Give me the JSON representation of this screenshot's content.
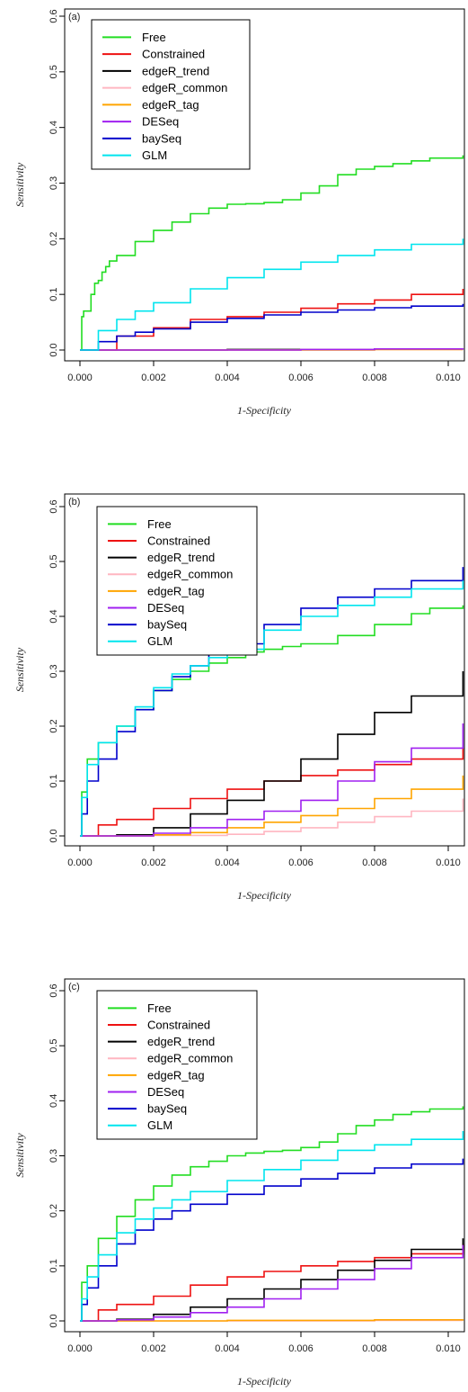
{
  "figure": {
    "legend_labels": [
      "Free",
      "Constrained",
      "edgeR_trend",
      "edgeR_common",
      "edgeR_tag",
      "DESeq",
      "baySeq",
      "GLM"
    ]
  },
  "chart_data": [
    {
      "type": "line",
      "panel": "(a)",
      "xlabel": "1-Specificity",
      "ylabel": "Sensitivity",
      "xlim": [
        0,
        0.0104
      ],
      "ylim": [
        0,
        0.6
      ],
      "xticks": [
        "0.000",
        "0.002",
        "0.004",
        "0.006",
        "0.008",
        "0.010"
      ],
      "yticks": [
        "0.0",
        "0.1",
        "0.2",
        "0.3",
        "0.4",
        "0.5",
        "0.6"
      ],
      "legend_position": "top-left",
      "series": [
        {
          "name": "Free",
          "color": "#22dd22",
          "x": [
            0,
            5e-05,
            0.0001,
            0.0003,
            0.0004,
            0.0005,
            0.0006,
            0.0007,
            0.0008,
            0.001,
            0.0015,
            0.002,
            0.0025,
            0.003,
            0.0035,
            0.004,
            0.0045,
            0.005,
            0.0055,
            0.006,
            0.0065,
            0.007,
            0.0075,
            0.008,
            0.0085,
            0.009,
            0.0095,
            0.0104
          ],
          "y": [
            0,
            0.06,
            0.07,
            0.1,
            0.12,
            0.125,
            0.14,
            0.15,
            0.16,
            0.17,
            0.195,
            0.215,
            0.23,
            0.245,
            0.255,
            0.262,
            0.263,
            0.265,
            0.27,
            0.282,
            0.295,
            0.315,
            0.325,
            0.33,
            0.335,
            0.34,
            0.345,
            0.35
          ]
        },
        {
          "name": "Constrained",
          "color": "#ee1111",
          "x": [
            0,
            0.001,
            0.002,
            0.003,
            0.004,
            0.005,
            0.006,
            0.007,
            0.008,
            0.009,
            0.0104
          ],
          "y": [
            0,
            0.025,
            0.04,
            0.055,
            0.06,
            0.068,
            0.075,
            0.083,
            0.09,
            0.1,
            0.11
          ]
        },
        {
          "name": "edgeR_trend",
          "color": "#000000",
          "x": [
            0,
            0.002,
            0.004,
            0.006,
            0.008,
            0.0104
          ],
          "y": [
            0,
            0,
            0.001,
            0.001,
            0.002,
            0.002
          ]
        },
        {
          "name": "edgeR_common",
          "color": "#ffb6c1",
          "x": [
            0,
            0.002,
            0.004,
            0.006,
            0.008,
            0.0104
          ],
          "y": [
            0,
            0,
            0,
            0.001,
            0.001,
            0.001
          ]
        },
        {
          "name": "edgeR_tag",
          "color": "#ffa500",
          "x": [
            0,
            0.002,
            0.004,
            0.006,
            0.008,
            0.0104
          ],
          "y": [
            0,
            0,
            0,
            0,
            0.001,
            0.001
          ]
        },
        {
          "name": "DESeq",
          "color": "#a020f0",
          "x": [
            0,
            0.002,
            0.004,
            0.006,
            0.008,
            0.0104
          ],
          "y": [
            0,
            0,
            0,
            0.001,
            0.002,
            0.003
          ]
        },
        {
          "name": "baySeq",
          "color": "#0000cc",
          "x": [
            0,
            0.0005,
            0.001,
            0.0015,
            0.002,
            0.003,
            0.004,
            0.005,
            0.006,
            0.007,
            0.008,
            0.009,
            0.0104
          ],
          "y": [
            0,
            0.015,
            0.025,
            0.032,
            0.038,
            0.05,
            0.057,
            0.063,
            0.068,
            0.072,
            0.076,
            0.079,
            0.083
          ]
        },
        {
          "name": "GLM",
          "color": "#00e5ee",
          "x": [
            0,
            0.0005,
            0.001,
            0.0015,
            0.002,
            0.003,
            0.004,
            0.005,
            0.006,
            0.007,
            0.008,
            0.009,
            0.0104
          ],
          "y": [
            0,
            0.035,
            0.055,
            0.07,
            0.085,
            0.11,
            0.13,
            0.145,
            0.158,
            0.17,
            0.18,
            0.19,
            0.2
          ]
        }
      ]
    },
    {
      "type": "line",
      "panel": "(b)",
      "xlabel": "1-Specificity",
      "ylabel": "Sensitivity",
      "xlim": [
        0,
        0.0104
      ],
      "ylim": [
        0,
        0.6
      ],
      "xticks": [
        "0.000",
        "0.002",
        "0.004",
        "0.006",
        "0.008",
        "0.010"
      ],
      "yticks": [
        "0.0",
        "0.1",
        "0.2",
        "0.3",
        "0.4",
        "0.5",
        "0.6"
      ],
      "legend_position": "top-left",
      "series": [
        {
          "name": "Free",
          "color": "#22dd22",
          "x": [
            0,
            5e-05,
            0.0002,
            0.0005,
            0.001,
            0.0015,
            0.002,
            0.0025,
            0.003,
            0.0035,
            0.004,
            0.0045,
            0.005,
            0.0055,
            0.006,
            0.007,
            0.008,
            0.009,
            0.0095,
            0.0104
          ],
          "y": [
            0,
            0.08,
            0.14,
            0.17,
            0.2,
            0.23,
            0.265,
            0.285,
            0.3,
            0.315,
            0.325,
            0.335,
            0.34,
            0.345,
            0.35,
            0.365,
            0.385,
            0.405,
            0.415,
            0.42
          ]
        },
        {
          "name": "Constrained",
          "color": "#ee1111",
          "x": [
            0,
            0.0005,
            0.001,
            0.002,
            0.003,
            0.004,
            0.005,
            0.006,
            0.007,
            0.008,
            0.009,
            0.0104
          ],
          "y": [
            0,
            0.02,
            0.03,
            0.05,
            0.068,
            0.085,
            0.1,
            0.11,
            0.12,
            0.13,
            0.14,
            0.16
          ]
        },
        {
          "name": "edgeR_trend",
          "color": "#000000",
          "x": [
            0,
            0.001,
            0.002,
            0.003,
            0.004,
            0.005,
            0.006,
            0.007,
            0.008,
            0.009,
            0.0104
          ],
          "y": [
            0,
            0.002,
            0.015,
            0.04,
            0.065,
            0.1,
            0.14,
            0.185,
            0.225,
            0.255,
            0.3
          ]
        },
        {
          "name": "edgeR_common",
          "color": "#ffb6c1",
          "x": [
            0,
            0.002,
            0.004,
            0.005,
            0.006,
            0.007,
            0.008,
            0.009,
            0.0104
          ],
          "y": [
            0,
            0.001,
            0.003,
            0.008,
            0.015,
            0.025,
            0.035,
            0.045,
            0.068
          ]
        },
        {
          "name": "edgeR_tag",
          "color": "#ffa500",
          "x": [
            0,
            0.002,
            0.003,
            0.004,
            0.005,
            0.006,
            0.007,
            0.008,
            0.009,
            0.0104
          ],
          "y": [
            0,
            0.002,
            0.006,
            0.015,
            0.025,
            0.037,
            0.05,
            0.068,
            0.085,
            0.11
          ]
        },
        {
          "name": "DESeq",
          "color": "#a020f0",
          "x": [
            0,
            0.002,
            0.003,
            0.004,
            0.005,
            0.006,
            0.007,
            0.008,
            0.009,
            0.0104
          ],
          "y": [
            0,
            0.005,
            0.015,
            0.03,
            0.045,
            0.065,
            0.1,
            0.135,
            0.16,
            0.205
          ]
        },
        {
          "name": "baySeq",
          "color": "#0000cc",
          "x": [
            0,
            5e-05,
            0.0002,
            0.0005,
            0.001,
            0.0015,
            0.002,
            0.0025,
            0.003,
            0.0035,
            0.004,
            0.005,
            0.006,
            0.007,
            0.008,
            0.009,
            0.0104
          ],
          "y": [
            0,
            0.04,
            0.1,
            0.14,
            0.19,
            0.23,
            0.265,
            0.29,
            0.31,
            0.33,
            0.35,
            0.385,
            0.415,
            0.435,
            0.45,
            0.465,
            0.49
          ]
        },
        {
          "name": "GLM",
          "color": "#00e5ee",
          "x": [
            0,
            5e-05,
            0.0002,
            0.0005,
            0.001,
            0.0015,
            0.002,
            0.0025,
            0.003,
            0.0035,
            0.004,
            0.005,
            0.006,
            0.007,
            0.008,
            0.009,
            0.0104
          ],
          "y": [
            0,
            0.07,
            0.13,
            0.17,
            0.2,
            0.235,
            0.27,
            0.295,
            0.31,
            0.325,
            0.34,
            0.375,
            0.4,
            0.42,
            0.435,
            0.45,
            0.465
          ]
        }
      ]
    },
    {
      "type": "line",
      "panel": "(c)",
      "xlabel": "1-Specificity",
      "ylabel": "Sensitivity",
      "xlim": [
        0,
        0.0104
      ],
      "ylim": [
        0,
        0.6
      ],
      "xticks": [
        "0.000",
        "0.002",
        "0.004",
        "0.006",
        "0.008",
        "0.010"
      ],
      "yticks": [
        "0.0",
        "0.1",
        "0.2",
        "0.3",
        "0.4",
        "0.5",
        "0.6"
      ],
      "legend_position": "top-left",
      "series": [
        {
          "name": "Free",
          "color": "#22dd22",
          "x": [
            0,
            5e-05,
            0.0002,
            0.0005,
            0.001,
            0.0015,
            0.002,
            0.0025,
            0.003,
            0.0035,
            0.004,
            0.0045,
            0.005,
            0.0055,
            0.006,
            0.0065,
            0.007,
            0.0075,
            0.008,
            0.0085,
            0.009,
            0.0095,
            0.0104
          ],
          "y": [
            0,
            0.07,
            0.1,
            0.15,
            0.19,
            0.22,
            0.245,
            0.265,
            0.28,
            0.29,
            0.3,
            0.305,
            0.308,
            0.31,
            0.315,
            0.325,
            0.34,
            0.355,
            0.365,
            0.375,
            0.38,
            0.385,
            0.39
          ]
        },
        {
          "name": "Constrained",
          "color": "#ee1111",
          "x": [
            0,
            0.0005,
            0.001,
            0.002,
            0.003,
            0.004,
            0.005,
            0.006,
            0.007,
            0.008,
            0.009,
            0.0104
          ],
          "y": [
            0,
            0.02,
            0.03,
            0.045,
            0.065,
            0.08,
            0.09,
            0.1,
            0.108,
            0.115,
            0.122,
            0.14
          ]
        },
        {
          "name": "edgeR_trend",
          "color": "#000000",
          "x": [
            0,
            0.001,
            0.002,
            0.003,
            0.004,
            0.005,
            0.006,
            0.007,
            0.008,
            0.009,
            0.0104
          ],
          "y": [
            0,
            0.003,
            0.012,
            0.025,
            0.04,
            0.058,
            0.075,
            0.092,
            0.11,
            0.13,
            0.15
          ]
        },
        {
          "name": "edgeR_common",
          "color": "#ffb6c1",
          "x": [
            0,
            0.004,
            0.008,
            0.0104
          ],
          "y": [
            0,
            0,
            0.001,
            0.001
          ]
        },
        {
          "name": "edgeR_tag",
          "color": "#ffa500",
          "x": [
            0,
            0.004,
            0.008,
            0.0104
          ],
          "y": [
            0,
            0.001,
            0.002,
            0.003
          ]
        },
        {
          "name": "DESeq",
          "color": "#a020f0",
          "x": [
            0,
            0.001,
            0.002,
            0.003,
            0.004,
            0.005,
            0.006,
            0.007,
            0.008,
            0.009,
            0.0104
          ],
          "y": [
            0,
            0.002,
            0.007,
            0.015,
            0.025,
            0.04,
            0.058,
            0.075,
            0.095,
            0.115,
            0.138
          ]
        },
        {
          "name": "baySeq",
          "color": "#0000cc",
          "x": [
            0,
            5e-05,
            0.0002,
            0.0005,
            0.001,
            0.0015,
            0.002,
            0.0025,
            0.003,
            0.004,
            0.005,
            0.006,
            0.007,
            0.008,
            0.009,
            0.0104
          ],
          "y": [
            0,
            0.03,
            0.06,
            0.1,
            0.14,
            0.165,
            0.185,
            0.2,
            0.212,
            0.23,
            0.245,
            0.258,
            0.268,
            0.278,
            0.285,
            0.295
          ]
        },
        {
          "name": "GLM",
          "color": "#00e5ee",
          "x": [
            0,
            5e-05,
            0.0002,
            0.0005,
            0.001,
            0.0015,
            0.002,
            0.0025,
            0.003,
            0.004,
            0.005,
            0.006,
            0.007,
            0.008,
            0.009,
            0.0104
          ],
          "y": [
            0,
            0.04,
            0.08,
            0.12,
            0.16,
            0.185,
            0.205,
            0.22,
            0.235,
            0.255,
            0.275,
            0.292,
            0.31,
            0.32,
            0.33,
            0.345
          ]
        }
      ]
    }
  ]
}
